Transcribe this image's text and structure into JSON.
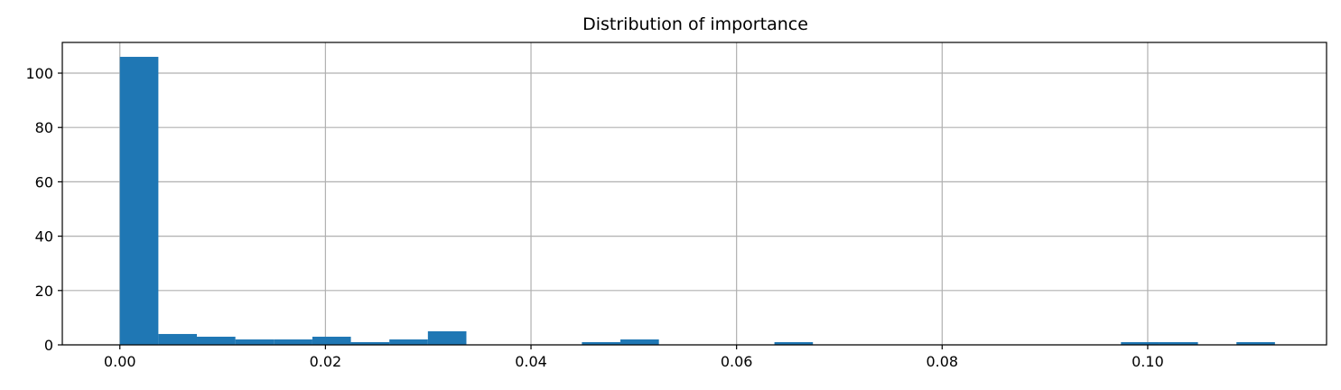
{
  "chart_data": {
    "type": "bar",
    "title": "Distribution of importance",
    "xlabel": "",
    "ylabel": "",
    "grid": true,
    "bar_color": "#1f77b4",
    "xlim": [
      -0.0056,
      0.1174
    ],
    "ylim": [
      0,
      111.3
    ],
    "x_ticks": [
      0.0,
      0.02,
      0.04,
      0.06,
      0.08,
      0.1
    ],
    "x_tick_labels": [
      "0.00",
      "0.02",
      "0.04",
      "0.06",
      "0.08",
      "0.10"
    ],
    "y_ticks": [
      0,
      20,
      40,
      60,
      80,
      100
    ],
    "y_tick_labels": [
      "0",
      "20",
      "40",
      "60",
      "80",
      "100"
    ],
    "bins": {
      "start": 0.0,
      "width": 0.003746,
      "counts": [
        106,
        4,
        3,
        2,
        2,
        3,
        1,
        2,
        5,
        0,
        0,
        0,
        1,
        2,
        0,
        0,
        0,
        1,
        0,
        0,
        0,
        0,
        0,
        0,
        0,
        0,
        1,
        1,
        0,
        1
      ]
    }
  }
}
